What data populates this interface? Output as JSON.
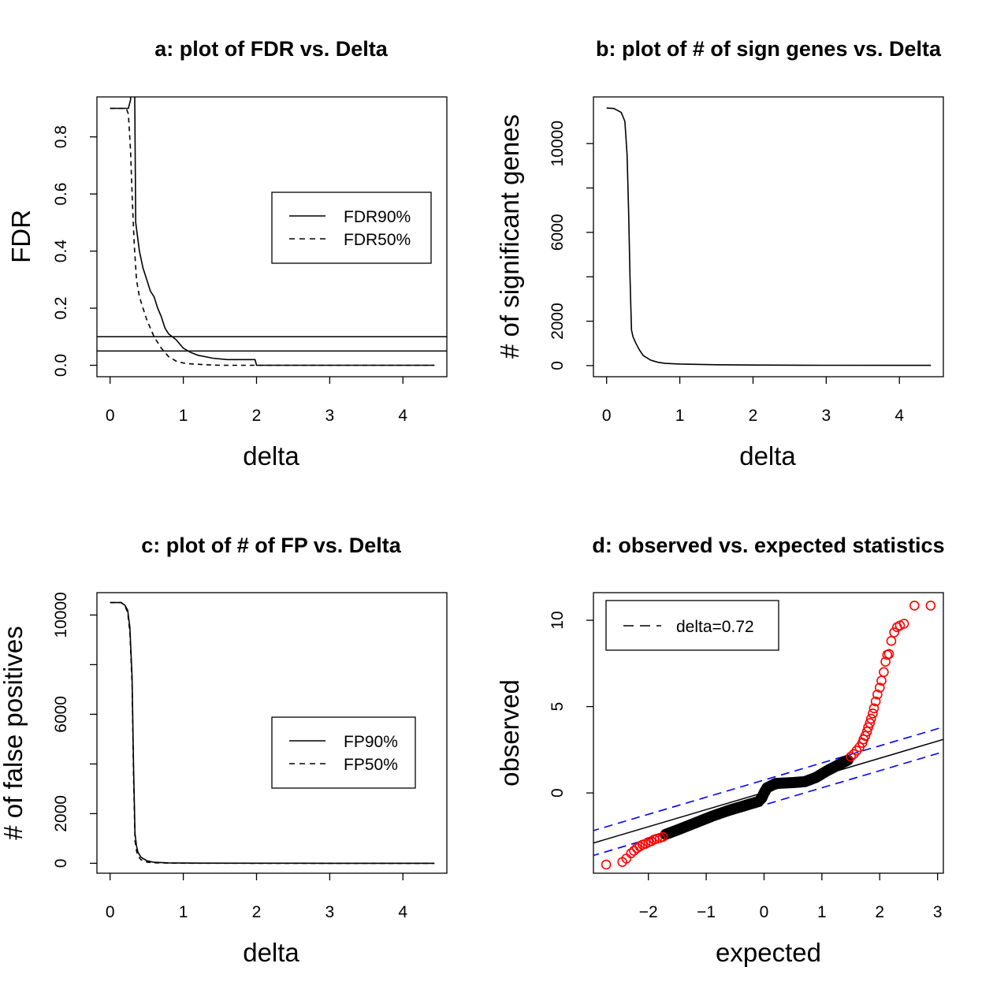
{
  "chart_data": [
    {
      "id": "a",
      "type": "line",
      "title": "a: plot of FDR vs. Delta",
      "xlabel": "delta",
      "ylabel": "FDR",
      "xlim": [
        -0.18,
        4.6
      ],
      "ylim": [
        -0.04,
        0.94
      ],
      "xticks": [
        0,
        1,
        2,
        3,
        4
      ],
      "xtick_labels": [
        "0",
        "1",
        "2",
        "3",
        "4"
      ],
      "yticks": [
        0.0,
        0.2,
        0.4,
        0.6,
        0.8
      ],
      "ytick_labels": [
        "0.0",
        "0.2",
        "0.4",
        "0.6",
        "0.8"
      ],
      "legend": {
        "position": "right",
        "entries": [
          "FDR90%",
          "FDR50%"
        ]
      },
      "hlines": [
        0.1,
        0.05
      ],
      "series": [
        {
          "name": "FDR90%",
          "dash": "solid",
          "x": [
            0,
            0.25,
            0.28,
            0.3,
            0.32,
            0.35,
            0.4,
            0.45,
            0.5,
            0.55,
            0.6,
            0.65,
            0.7,
            0.75,
            0.8,
            0.85,
            0.9,
            1.0,
            1.1,
            1.2,
            1.4,
            1.6,
            1.8,
            1.98,
            2.0,
            2.5,
            3.0,
            4.43
          ],
          "y": [
            0.9,
            0.9,
            0.93,
            1.5,
            1.5,
            0.5,
            0.4,
            0.34,
            0.3,
            0.26,
            0.24,
            0.2,
            0.17,
            0.13,
            0.11,
            0.1,
            0.09,
            0.06,
            0.045,
            0.035,
            0.025,
            0.02,
            0.02,
            0.02,
            0.0,
            0.0,
            0.0,
            0.0
          ]
        },
        {
          "name": "FDR50%",
          "dash": "dashed",
          "x": [
            0,
            0.22,
            0.25,
            0.28,
            0.3,
            0.33,
            0.36,
            0.4,
            0.45,
            0.5,
            0.55,
            0.6,
            0.7,
            0.8,
            0.9,
            1.0,
            1.1,
            1.3,
            1.5,
            2.0,
            3.0,
            4.43
          ],
          "y": [
            0.9,
            0.9,
            0.88,
            0.75,
            0.6,
            0.42,
            0.3,
            0.24,
            0.2,
            0.16,
            0.13,
            0.1,
            0.06,
            0.03,
            0.015,
            0.008,
            0.005,
            0.002,
            0.0,
            0.0,
            0.0,
            0.0
          ]
        }
      ]
    },
    {
      "id": "b",
      "type": "line",
      "title": "b: plot of # of sign genes vs. Delta",
      "xlabel": "delta",
      "ylabel": "# of significant genes",
      "xlim": [
        -0.18,
        4.6
      ],
      "ylim": [
        -500,
        12100
      ],
      "xticks": [
        0,
        1,
        2,
        3,
        4
      ],
      "xtick_labels": [
        "0",
        "1",
        "2",
        "3",
        "4"
      ],
      "yticks": [
        0,
        2000,
        4000,
        6000,
        8000,
        10000
      ],
      "ytick_labels": [
        "0",
        "2000",
        "",
        "6000",
        "",
        "10000"
      ],
      "series": [
        {
          "name": "",
          "dash": "solid",
          "x": [
            0,
            0.1,
            0.2,
            0.25,
            0.28,
            0.3,
            0.32,
            0.34,
            0.36,
            0.4,
            0.45,
            0.5,
            0.6,
            0.7,
            0.8,
            1.0,
            1.5,
            2.0,
            3.0,
            4.43
          ],
          "y": [
            11600,
            11580,
            11400,
            11000,
            9500,
            7000,
            4000,
            1600,
            1300,
            1000,
            700,
            450,
            250,
            150,
            100,
            70,
            40,
            25,
            15,
            10
          ]
        }
      ]
    },
    {
      "id": "c",
      "type": "line",
      "title": "c: plot of # of FP vs. Delta",
      "xlabel": "delta",
      "ylabel": "# of false positives",
      "xlim": [
        -0.18,
        4.6
      ],
      "ylim": [
        -400,
        10900
      ],
      "xticks": [
        0,
        1,
        2,
        3,
        4
      ],
      "xtick_labels": [
        "0",
        "1",
        "2",
        "3",
        "4"
      ],
      "yticks": [
        0,
        2000,
        4000,
        6000,
        8000,
        10000
      ],
      "ytick_labels": [
        "0",
        "2000",
        "",
        "6000",
        "",
        "10000"
      ],
      "legend": {
        "position": "right",
        "entries": [
          "FP90%",
          "FP50%"
        ]
      },
      "series": [
        {
          "name": "FP90%",
          "dash": "solid",
          "x": [
            0,
            0.15,
            0.2,
            0.24,
            0.27,
            0.3,
            0.32,
            0.34,
            0.36,
            0.38,
            0.42,
            0.5,
            0.6,
            0.8,
            1.0,
            2.0,
            3.0,
            4.43
          ],
          "y": [
            10500,
            10500,
            10400,
            10200,
            9500,
            7500,
            4000,
            1200,
            700,
            450,
            250,
            100,
            40,
            15,
            8,
            2,
            1,
            0
          ]
        },
        {
          "name": "FP50%",
          "dash": "dashed",
          "x": [
            0,
            0.15,
            0.2,
            0.24,
            0.27,
            0.3,
            0.32,
            0.34,
            0.36,
            0.38,
            0.42,
            0.5,
            0.6,
            0.8,
            1.0,
            2.0,
            3.0,
            4.43
          ],
          "y": [
            10500,
            10500,
            10380,
            10100,
            9300,
            7200,
            3600,
            900,
            500,
            300,
            150,
            50,
            20,
            8,
            4,
            1,
            0,
            0
          ]
        }
      ]
    },
    {
      "id": "d",
      "type": "scatter",
      "title": "d: observed vs. expected statistics",
      "xlabel": "expected",
      "ylabel": "observed",
      "xlim": [
        -2.95,
        3.1
      ],
      "ylim": [
        -4.65,
        11.6
      ],
      "xticks": [
        -2,
        -1,
        0,
        1,
        2,
        3
      ],
      "xtick_labels": [
        "−2",
        "−1",
        "0",
        "1",
        "2",
        "3"
      ],
      "yticks": [
        0,
        5,
        10
      ],
      "ytick_labels": [
        "0",
        "5",
        "10"
      ],
      "legend": {
        "position": "top-left",
        "entries": [
          "delta=0.72"
        ]
      },
      "colors": {
        "significant": "#ff0000",
        "nonsignificant": "#000000",
        "band": "#0000ff"
      },
      "reference_line": {
        "x": [
          -3,
          3.1
        ],
        "y": [
          -2.95,
          3.1
        ]
      },
      "band_upper": {
        "x": [
          -3,
          3.1
        ],
        "y": [
          -2.23,
          3.82
        ]
      },
      "band_lower": {
        "x": [
          -3,
          3.1
        ],
        "y": [
          -3.67,
          2.38
        ]
      },
      "black_curve": {
        "x": [
          -1.7,
          -1.5,
          -1.2,
          -0.9,
          -0.6,
          -0.3,
          -0.1,
          -0.04,
          0,
          0.05,
          0.2,
          0.5,
          0.7,
          0.9,
          1.1,
          1.3,
          1.45
        ],
        "y": [
          -2.4,
          -2.15,
          -1.75,
          -1.35,
          -1.0,
          -0.7,
          -0.5,
          -0.3,
          0.0,
          0.3,
          0.55,
          0.6,
          0.65,
          0.9,
          1.3,
          1.65,
          1.9
        ]
      },
      "red_points": {
        "x": [
          -2.73,
          -2.45,
          -2.38,
          -2.3,
          -2.25,
          -2.2,
          -2.15,
          -2.1,
          -2.05,
          -2.0,
          -1.95,
          -1.9,
          -1.85,
          -1.8,
          -1.75,
          1.5,
          1.55,
          1.6,
          1.65,
          1.7,
          1.72,
          1.75,
          1.78,
          1.8,
          1.83,
          1.85,
          1.88,
          1.9,
          1.93,
          1.96,
          2.0,
          2.03,
          2.07,
          2.1,
          2.13,
          2.16,
          2.2,
          2.25,
          2.3,
          2.35,
          2.42,
          2.6,
          2.88
        ],
        "y": [
          -4.15,
          -4.0,
          -3.8,
          -3.5,
          -3.35,
          -3.2,
          -3.1,
          -3.0,
          -2.95,
          -2.85,
          -2.8,
          -2.7,
          -2.65,
          -2.6,
          -2.55,
          2.1,
          2.25,
          2.45,
          2.65,
          2.9,
          3.1,
          3.3,
          3.55,
          3.8,
          4.05,
          4.3,
          4.6,
          4.9,
          5.3,
          5.7,
          6.1,
          6.5,
          7.0,
          7.6,
          8.0,
          8.05,
          8.8,
          9.3,
          9.6,
          9.7,
          9.8,
          10.85,
          10.85
        ]
      }
    }
  ]
}
